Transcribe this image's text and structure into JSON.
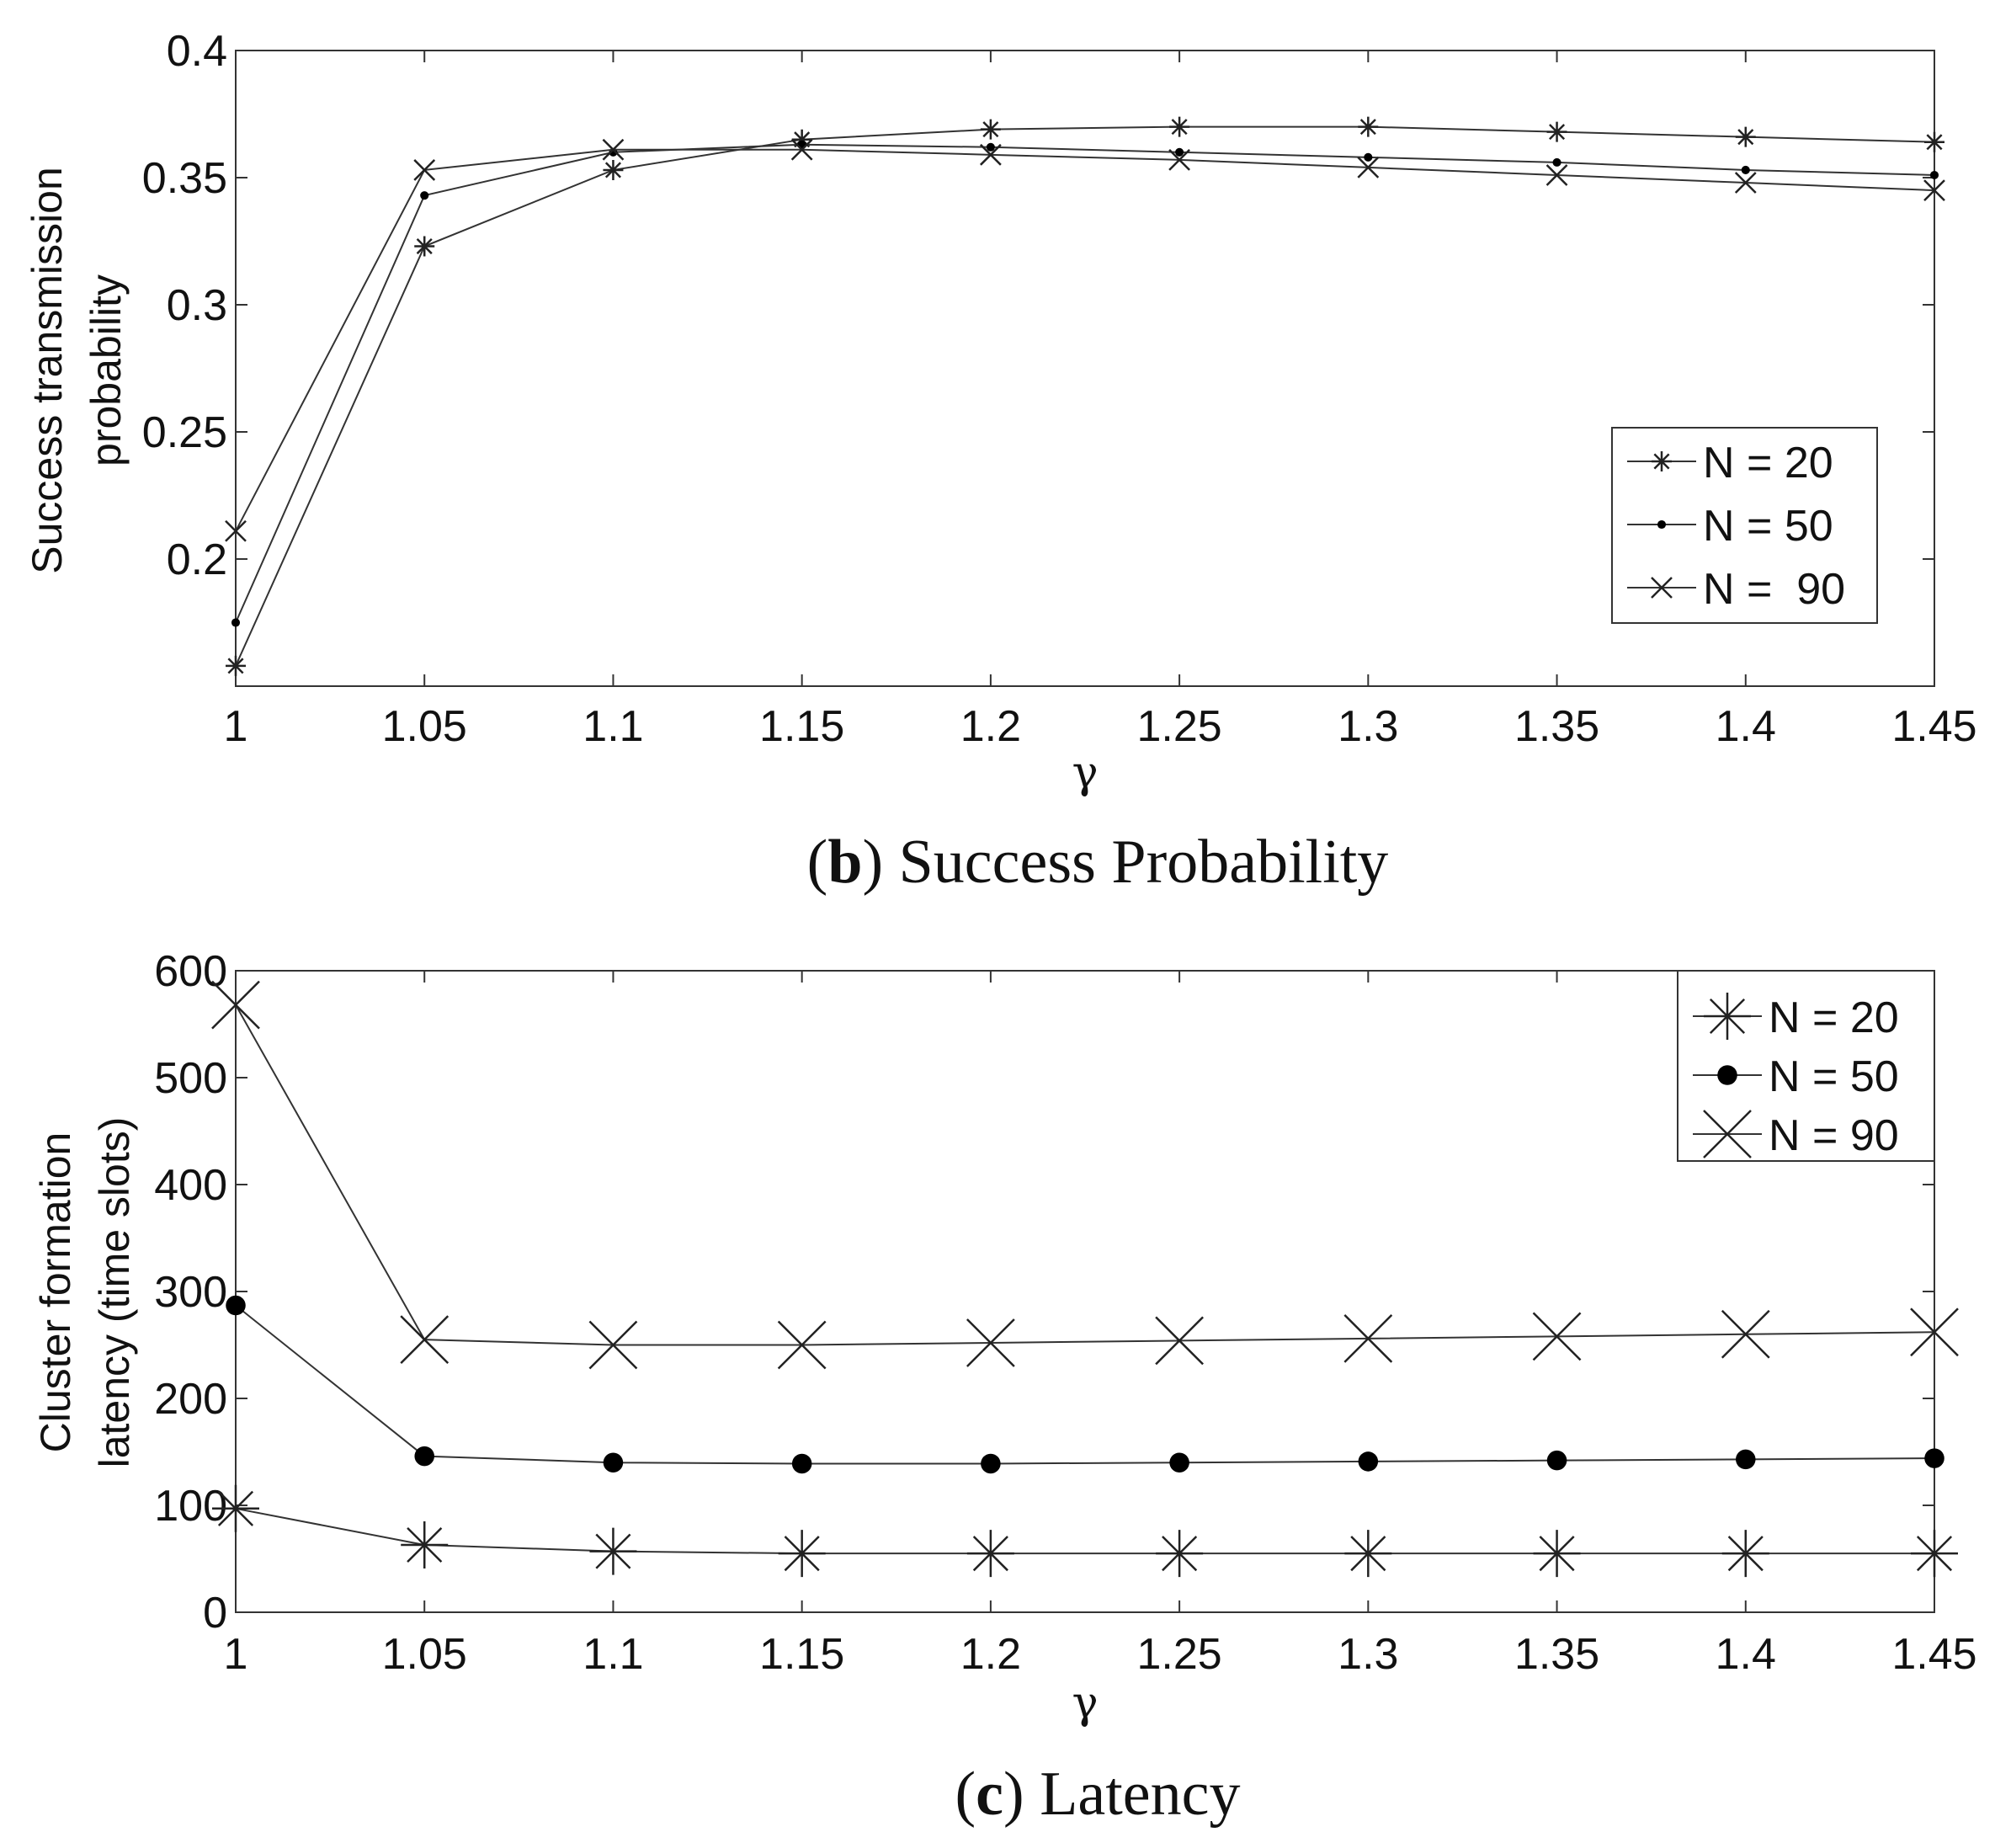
{
  "chart_data": [
    {
      "type": "line",
      "caption_label": "b",
      "caption_text": " Success Probability",
      "xlabel": "γ",
      "ylabel": [
        "Success transmission",
        "probability"
      ],
      "xlim": [
        1,
        1.45
      ],
      "ylim": [
        0.15,
        0.4
      ],
      "xticks": [
        "1",
        "1.05",
        "1.1",
        "1.15",
        "1.2",
        "1.25",
        "1.3",
        "1.35",
        "1.4",
        "1.45"
      ],
      "yticks": [
        "0.2",
        "0.25",
        "0.3",
        "0.35",
        "0.4"
      ],
      "grid": false,
      "legend_position": "bottom-right",
      "x": [
        1,
        1.05,
        1.1,
        1.15,
        1.2,
        1.25,
        1.3,
        1.35,
        1.4,
        1.45
      ],
      "series": [
        {
          "name": "N = 20",
          "marker": "star",
          "values": [
            0.158,
            0.323,
            0.353,
            0.365,
            0.369,
            0.37,
            0.37,
            0.368,
            0.366,
            0.364
          ]
        },
        {
          "name": "N = 50",
          "marker": "dot",
          "values": [
            0.175,
            0.343,
            0.36,
            0.363,
            0.362,
            0.36,
            0.358,
            0.356,
            0.353,
            0.351
          ]
        },
        {
          "name": "N =  90",
          "marker": "cross",
          "values": [
            0.211,
            0.353,
            0.361,
            0.361,
            0.359,
            0.357,
            0.354,
            0.351,
            0.348,
            0.345
          ]
        }
      ]
    },
    {
      "type": "line",
      "caption_label": "c",
      "caption_text": " Latency",
      "xlabel": "γ",
      "ylabel": [
        "Cluster formation",
        "latency (time slots)"
      ],
      "xlim": [
        1,
        1.45
      ],
      "ylim": [
        0,
        600
      ],
      "xticks": [
        "1",
        "1.05",
        "1.1",
        "1.15",
        "1.2",
        "1.25",
        "1.3",
        "1.35",
        "1.4",
        "1.45"
      ],
      "yticks": [
        "0",
        "100",
        "200",
        "300",
        "400",
        "500",
        "600"
      ],
      "grid": false,
      "legend_position": "top-right",
      "x": [
        1,
        1.05,
        1.1,
        1.15,
        1.2,
        1.25,
        1.3,
        1.35,
        1.4,
        1.45
      ],
      "series": [
        {
          "name": "N = 20",
          "marker": "star",
          "values": [
            97,
            63,
            57,
            55,
            55,
            55,
            55,
            55,
            55,
            55
          ]
        },
        {
          "name": "N = 50",
          "marker": "dot",
          "values": [
            287,
            146,
            140,
            139,
            139,
            140,
            141,
            142,
            143,
            144
          ]
        },
        {
          "name": "N = 90",
          "marker": "cross",
          "values": [
            568,
            255,
            250,
            250,
            252,
            254,
            256,
            258,
            260,
            262
          ]
        }
      ]
    }
  ]
}
